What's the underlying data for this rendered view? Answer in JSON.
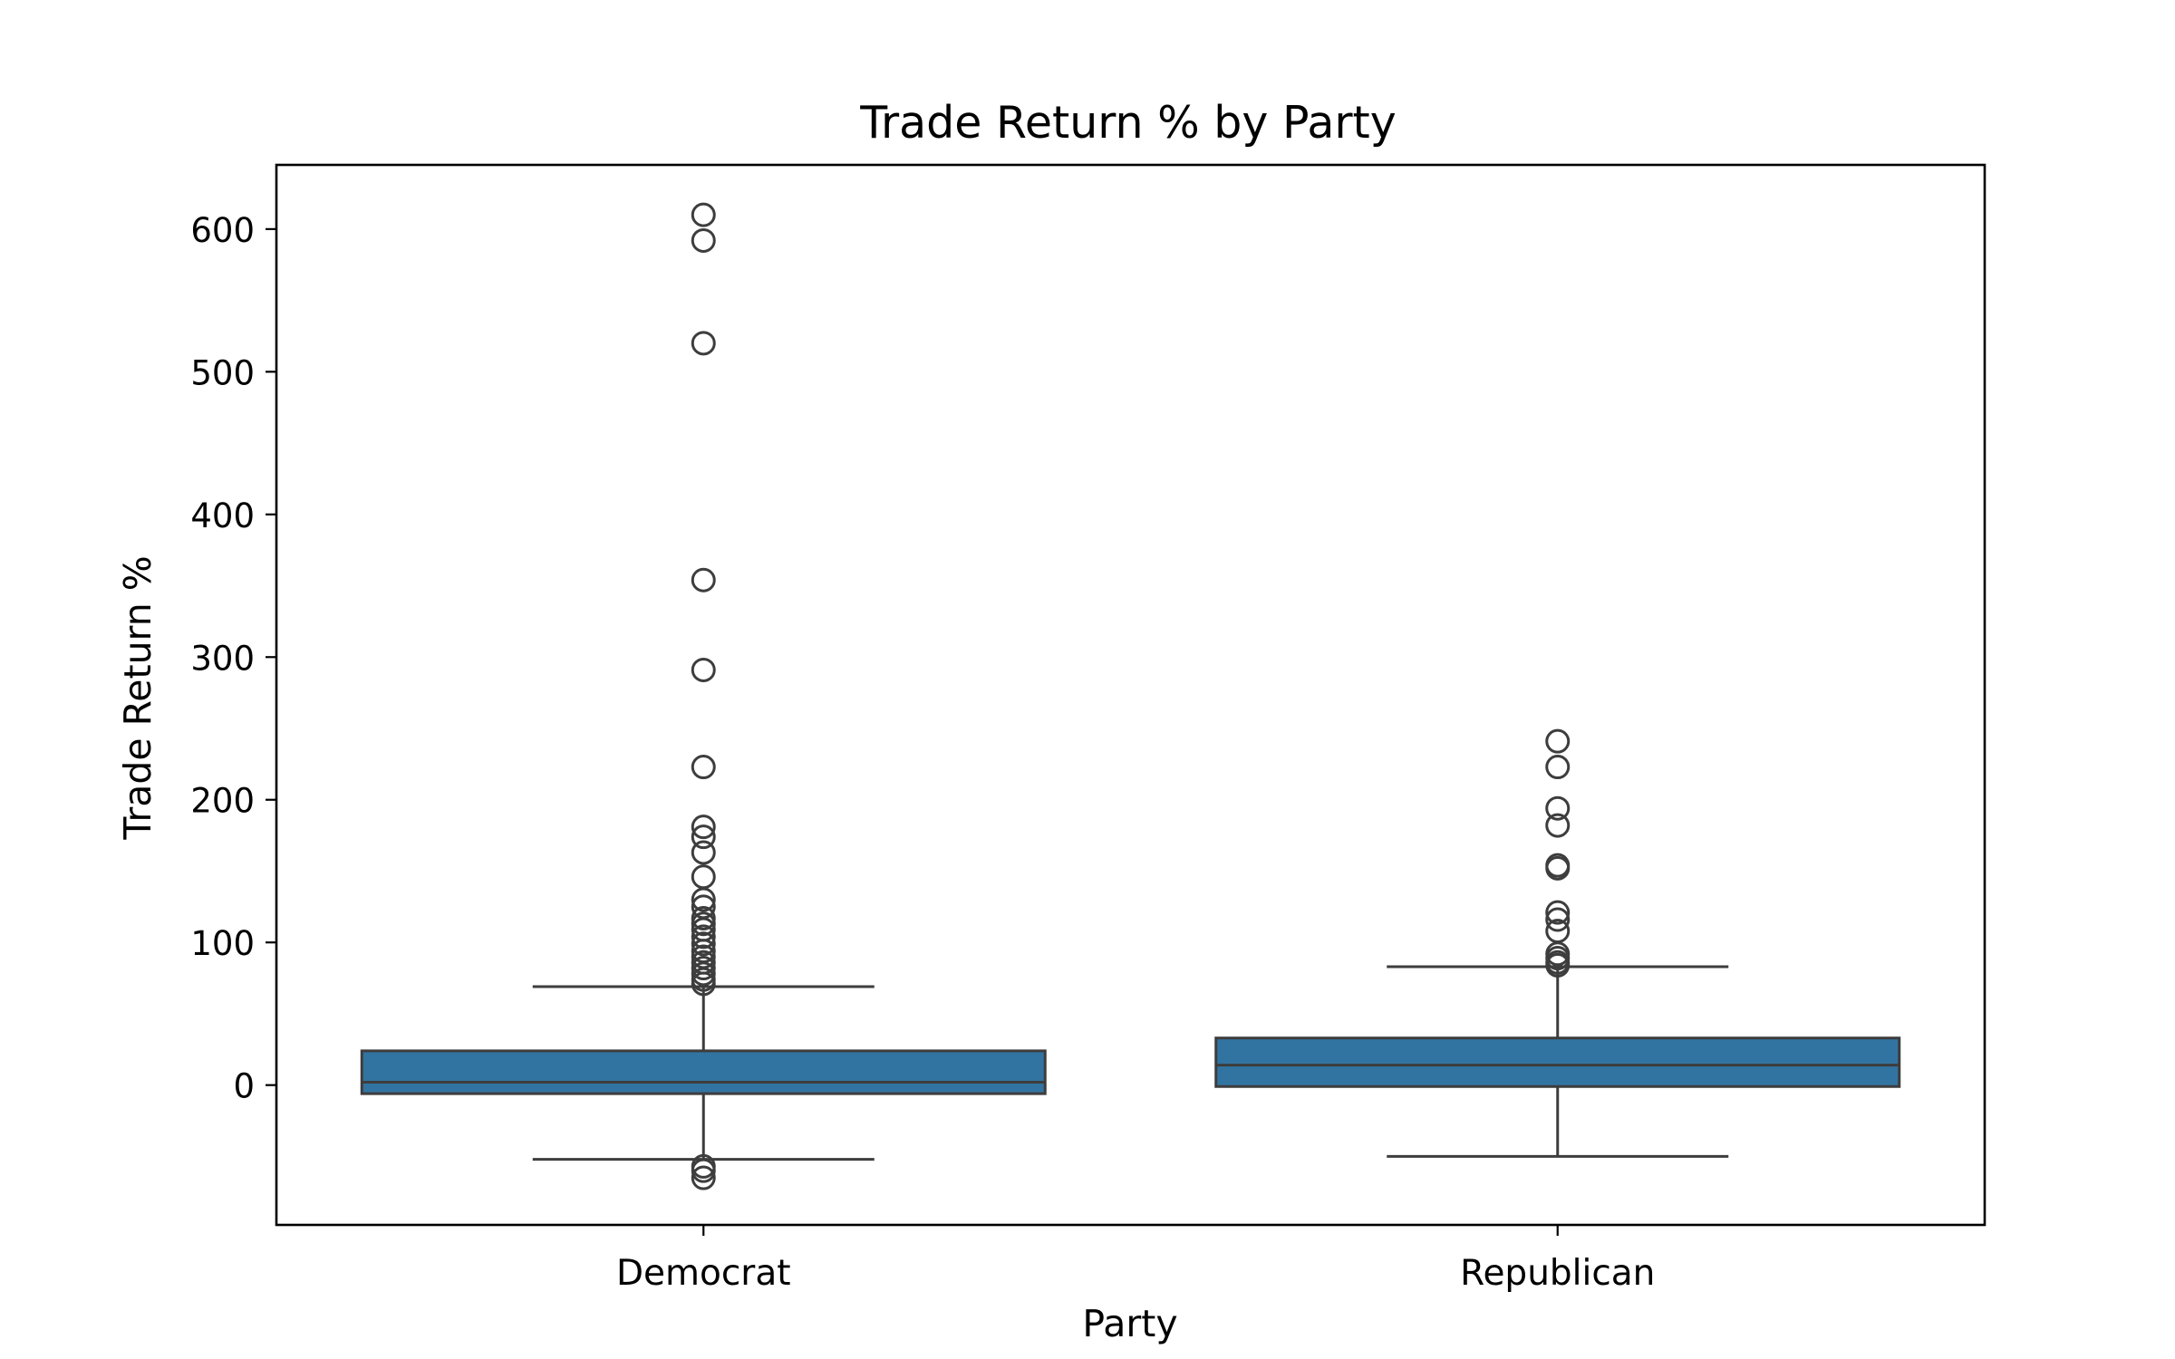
{
  "chart_data": {
    "type": "box",
    "title": "Trade Return % by Party",
    "xlabel": "Party",
    "ylabel": "Trade Return %",
    "ylim": [
      -98,
      645
    ],
    "yticks": [
      0,
      100,
      200,
      300,
      400,
      500,
      600
    ],
    "ytick_labels": [
      "0",
      "100",
      "200",
      "300",
      "400",
      "500",
      "600"
    ],
    "categories": [
      "Democrat",
      "Republican"
    ],
    "box_color": "#3274a1",
    "line_color": "#3d3d3d",
    "grid": false,
    "legend": "none",
    "boxes": [
      {
        "name": "Democrat",
        "whisker_low": -52,
        "q1": -6,
        "median": 2,
        "q3": 24,
        "whisker_high": 69,
        "outliers": [
          610,
          592,
          520,
          354,
          291,
          223,
          181,
          174,
          163,
          146,
          130,
          125,
          117,
          113,
          109,
          104,
          99,
          94,
          90,
          86,
          82,
          78,
          74,
          71,
          -57,
          -60,
          -65
        ]
      },
      {
        "name": "Republican",
        "whisker_low": -50,
        "q1": -1,
        "median": 14,
        "q3": 33,
        "whisker_high": 83,
        "outliers": [
          241,
          223,
          194,
          182,
          154,
          152,
          121,
          116,
          108,
          92,
          89,
          86,
          84
        ]
      }
    ]
  }
}
